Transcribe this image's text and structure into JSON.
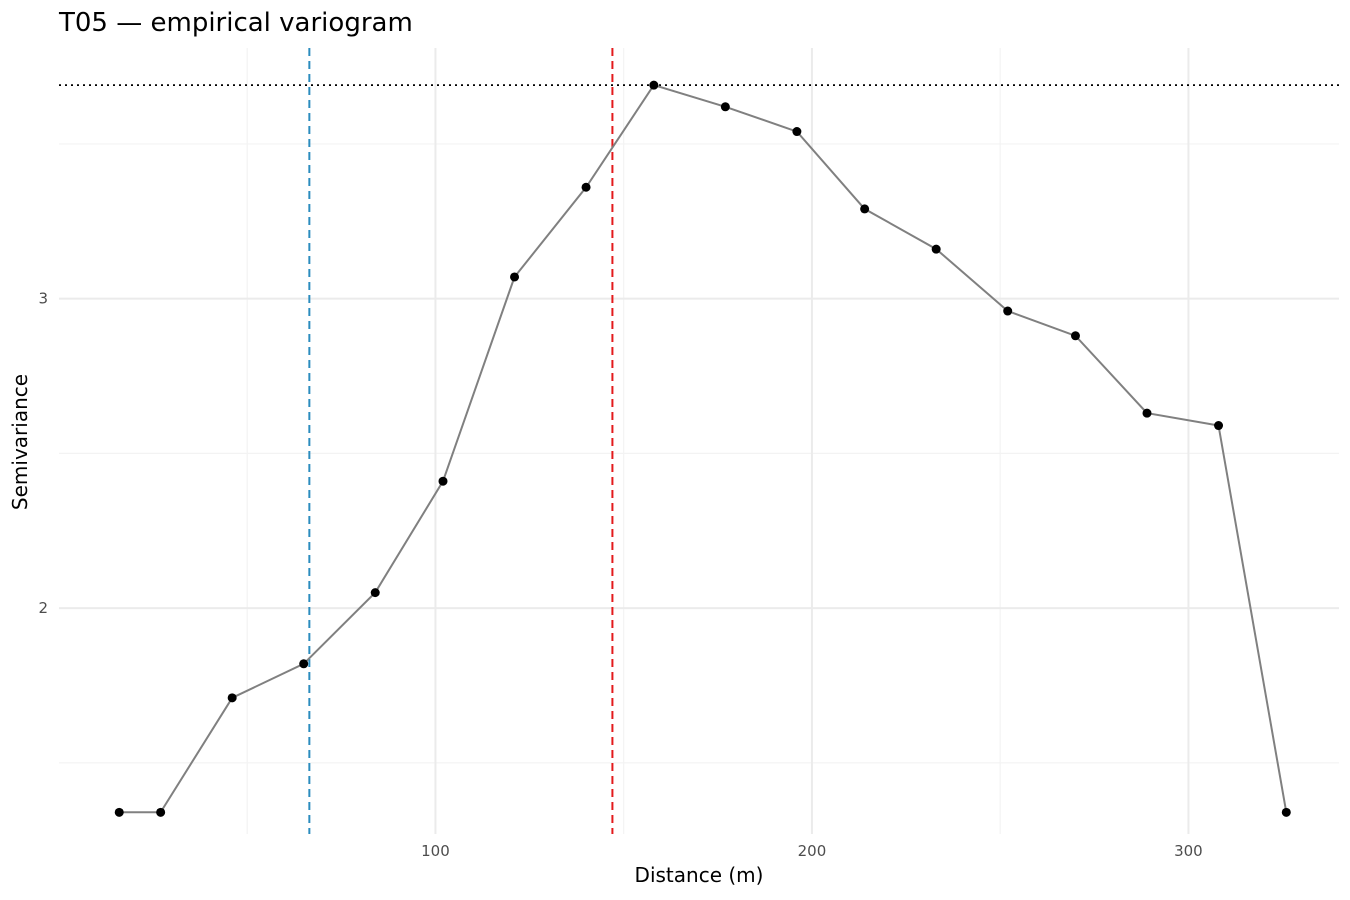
{
  "chart_data": {
    "type": "line",
    "title": "T05 — empirical variogram",
    "xlabel": "Distance (m)",
    "ylabel": "Semivariance",
    "xlim": [
      0,
      340
    ],
    "ylim": [
      1.27,
      3.81
    ],
    "x_ticks": [
      100,
      200,
      300
    ],
    "x_tick_labels": [
      "100",
      "200",
      "300"
    ],
    "x_minor_ticks": [
      50,
      150,
      250
    ],
    "y_ticks": [
      2,
      3
    ],
    "y_tick_labels": [
      "2",
      "3"
    ],
    "y_minor_ticks": [
      1.5,
      2.5,
      3.5
    ],
    "grid": true,
    "legend": "none",
    "series": [
      {
        "x": [
          16,
          27,
          46,
          65,
          84,
          102,
          121,
          140,
          158,
          177,
          196,
          214,
          233,
          252,
          270,
          289,
          308,
          326
        ],
        "y": [
          1.34,
          1.34,
          1.71,
          1.82,
          2.05,
          2.41,
          3.07,
          3.36,
          3.69,
          3.62,
          3.54,
          3.29,
          3.16,
          2.96,
          2.88,
          2.63,
          2.59,
          1.34
        ],
        "line_color": "#808080",
        "point_color": "#000000"
      }
    ],
    "reference_lines": [
      {
        "orientation": "vertical",
        "x": 66.5,
        "color": "#2b8cbe",
        "style": "dashed"
      },
      {
        "orientation": "vertical",
        "x": 147,
        "color": "#e31a1c",
        "style": "dashed"
      },
      {
        "orientation": "horizontal",
        "y": 3.69,
        "color": "#000000",
        "style": "dotted"
      }
    ]
  }
}
